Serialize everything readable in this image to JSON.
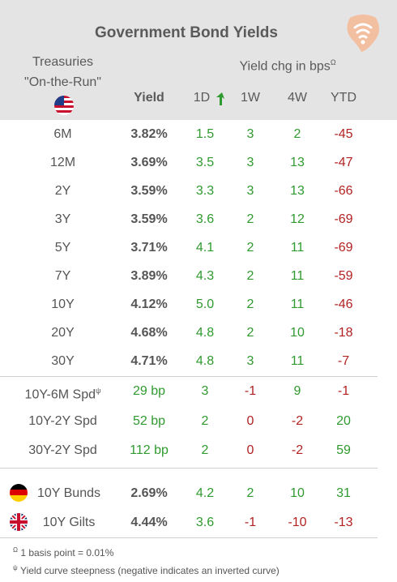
{
  "title": "Government Bond Yields",
  "treasuries_label_1": "Treasuries",
  "treasuries_label_2": "\"On-the-Run\"",
  "yield_chg_label": "Yield chg in bps",
  "yield_chg_sup": "Ω",
  "columns": {
    "yield": "Yield",
    "d1": "1D",
    "w1": "1W",
    "w4": "4W",
    "ytd": "YTD"
  },
  "treasuries": [
    {
      "label": "6M",
      "yield": "3.82%",
      "d1": "1.5",
      "w1": "3",
      "w4": "2",
      "ytd": "-45"
    },
    {
      "label": "12M",
      "yield": "3.69%",
      "d1": "3.5",
      "w1": "3",
      "w4": "13",
      "ytd": "-47"
    },
    {
      "label": "2Y",
      "yield": "3.59%",
      "d1": "3.3",
      "w1": "3",
      "w4": "13",
      "ytd": "-66"
    },
    {
      "label": "3Y",
      "yield": "3.59%",
      "d1": "3.6",
      "w1": "2",
      "w4": "12",
      "ytd": "-69"
    },
    {
      "label": "5Y",
      "yield": "3.71%",
      "d1": "4.1",
      "w1": "2",
      "w4": "11",
      "ytd": "-69"
    },
    {
      "label": "7Y",
      "yield": "3.89%",
      "d1": "4.3",
      "w1": "2",
      "w4": "11",
      "ytd": "-59"
    },
    {
      "label": "10Y",
      "yield": "4.12%",
      "d1": "5.0",
      "w1": "2",
      "w4": "11",
      "ytd": "-46"
    },
    {
      "label": "20Y",
      "yield": "4.68%",
      "d1": "4.8",
      "w1": "2",
      "w4": "10",
      "ytd": "-18"
    },
    {
      "label": "30Y",
      "yield": "4.71%",
      "d1": "4.8",
      "w1": "3",
      "w4": "11",
      "ytd": "-7"
    }
  ],
  "spreads": [
    {
      "label": "10Y-6M Spd",
      "sup": "ψ",
      "yield": "29 bp",
      "d1": "3",
      "w1": "-1",
      "w4": "9",
      "ytd": "-1"
    },
    {
      "label": "10Y-2Y Spd",
      "sup": "",
      "yield": "52 bp",
      "d1": "2",
      "w1": "0",
      "w4": "-2",
      "ytd": "20"
    },
    {
      "label": "30Y-2Y Spd",
      "sup": "",
      "yield": "112 bp",
      "d1": "2",
      "w1": "0",
      "w4": "-2",
      "ytd": "59"
    }
  ],
  "international": [
    {
      "label": "10Y Bunds",
      "flag": "germany-flag",
      "yield": "2.69%",
      "d1": "4.2",
      "w1": "2",
      "w4": "10",
      "ytd": "31"
    },
    {
      "label": "10Y Gilts",
      "flag": "uk-flag",
      "yield": "4.44%",
      "d1": "3.6",
      "w1": "-1",
      "w4": "-10",
      "ytd": "-13"
    }
  ],
  "footnotes": {
    "omega_sym": "Ω",
    "omega_text": " 1 basis point = 0.01%",
    "psi_sym": "ψ",
    "psi_text": " Yield curve steepness (negative indicates an inverted curve)"
  },
  "colors": {
    "header_bg": "#e4e4e4",
    "positive": "#2f9a2f",
    "negative": "#b22222",
    "logo": "#f2bfa0"
  },
  "icons": [
    "logo-icon",
    "us-flag-icon",
    "trend-arrow-icon",
    "germany-flag-icon",
    "uk-flag-icon"
  ]
}
